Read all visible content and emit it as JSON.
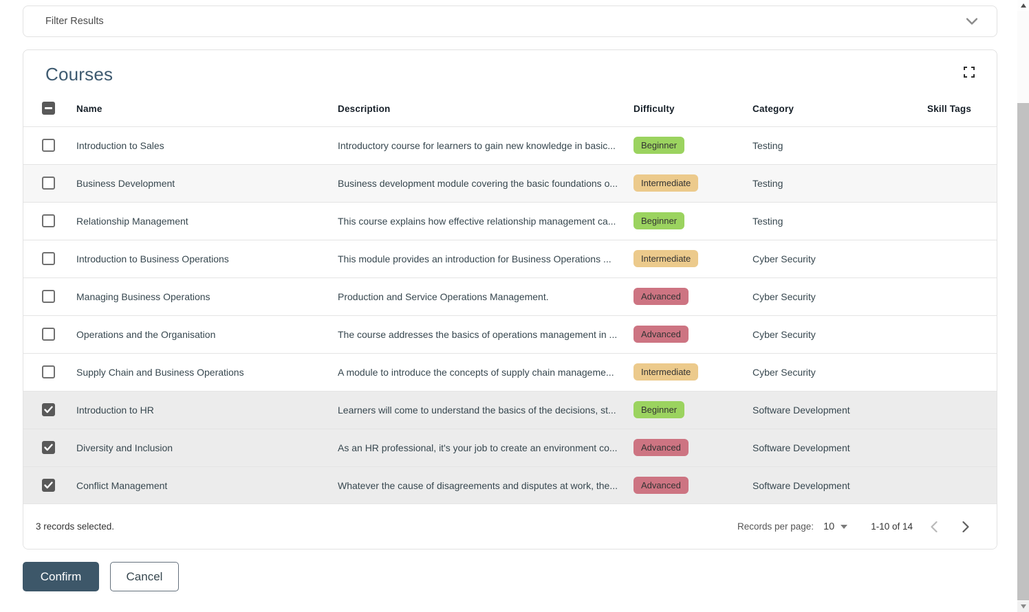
{
  "filter": {
    "label": "Filter Results"
  },
  "panel": {
    "title": "Courses"
  },
  "table": {
    "headers": [
      "Name",
      "Description",
      "Difficulty",
      "Category",
      "Skill Tags"
    ],
    "header_checkbox_state": "indeterminate",
    "rows": [
      {
        "name": "Introduction to Sales",
        "description": "Introductory course for learners to gain new knowledge in basic...",
        "difficulty": "Beginner",
        "category": "Testing",
        "skill_tags": "",
        "selected": false,
        "highlighted": false
      },
      {
        "name": "Business Development",
        "description": "Business development module covering the basic foundations o...",
        "difficulty": "Intermediate",
        "category": "Testing",
        "skill_tags": "",
        "selected": false,
        "highlighted": true
      },
      {
        "name": "Relationship Management",
        "description": "This course explains how effective relationship management ca...",
        "difficulty": "Beginner",
        "category": "Testing",
        "skill_tags": "",
        "selected": false,
        "highlighted": false
      },
      {
        "name": "Introduction to Business Operations",
        "description": "This module provides an introduction for Business Operations ...",
        "difficulty": "Intermediate",
        "category": "Cyber Security",
        "skill_tags": "",
        "selected": false,
        "highlighted": false
      },
      {
        "name": "Managing Business Operations",
        "description": "Production and Service Operations Management.",
        "difficulty": "Advanced",
        "category": "Cyber Security",
        "skill_tags": "",
        "selected": false,
        "highlighted": false
      },
      {
        "name": "Operations and the Organisation",
        "description": "The course addresses the basics of operations management in ...",
        "difficulty": "Advanced",
        "category": "Cyber Security",
        "skill_tags": "",
        "selected": false,
        "highlighted": false
      },
      {
        "name": "Supply Chain and Business Operations",
        "description": "A module to introduce the concepts of supply chain manageme...",
        "difficulty": "Intermediate",
        "category": "Cyber Security",
        "skill_tags": "",
        "selected": false,
        "highlighted": false
      },
      {
        "name": "Introduction to HR",
        "description": "Learners will come to understand the basics of the decisions, st...",
        "difficulty": "Beginner",
        "category": "Software Development",
        "skill_tags": "",
        "selected": true,
        "highlighted": false
      },
      {
        "name": "Diversity and Inclusion",
        "description": "As an HR professional, it's your job to create an environment co...",
        "difficulty": "Advanced",
        "category": "Software Development",
        "skill_tags": "",
        "selected": true,
        "highlighted": false
      },
      {
        "name": "Conflict Management",
        "description": "Whatever the cause of disagreements and disputes at work, the...",
        "difficulty": "Advanced",
        "category": "Software Development",
        "skill_tags": "",
        "selected": true,
        "highlighted": false
      }
    ]
  },
  "footer": {
    "selected_text": "3 records selected.",
    "records_per_page_label": "Records per page:",
    "records_per_page_value": "10",
    "range_text": "1-10 of 14"
  },
  "actions": {
    "confirm": "Confirm",
    "cancel": "Cancel"
  },
  "colors": {
    "difficulty": {
      "Beginner": "#9bd35f",
      "Intermediate": "#ecca8c",
      "Advanced": "#cd7482"
    },
    "confirm_button": "#3d5769",
    "selected_row": "#ececec"
  }
}
